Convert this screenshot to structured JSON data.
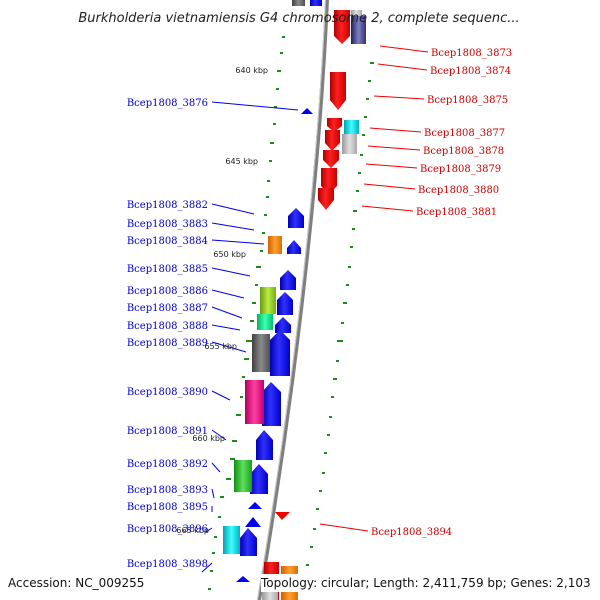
{
  "title": "Burkholderia vietnamiensis G4 chromosome 2, complete sequenc...",
  "footer": {
    "accession": "Accession: NC_009255",
    "topology": "Topology: circular; Length: 2,411,759 bp; Genes: 2,103"
  },
  "colors": {
    "backbone": "#808080",
    "forward_gene": "#0000ee",
    "reverse_gene": "#ee0000",
    "forward_label": "#0000cc",
    "reverse_label": "#cc0000",
    "gc_tick": "#228822"
  },
  "kbp_markers": [
    "640 kbp",
    "645 kbp",
    "650 kbp",
    "655 kbp",
    "660 kbp",
    "665 kbp"
  ],
  "left_labels": [
    "Bcep1808_3876",
    "Bcep1808_3882",
    "Bcep1808_3883",
    "Bcep1808_3884",
    "Bcep1808_3885",
    "Bcep1808_3886",
    "Bcep1808_3887",
    "Bcep1808_3888",
    "Bcep1808_3889",
    "Bcep1808_3890",
    "Bcep1808_3891",
    "Bcep1808_3892",
    "Bcep1808_3893",
    "Bcep1808_3895",
    "Bcep1808_3896",
    "Bcep1808_3898"
  ],
  "right_labels": [
    "Bcep1808_3873",
    "Bcep1808_3874",
    "Bcep1808_3875",
    "Bcep1808_3877",
    "Bcep1808_3878",
    "Bcep1808_3879",
    "Bcep1808_3880",
    "Bcep1808_3881",
    "Bcep1808_3894"
  ]
}
